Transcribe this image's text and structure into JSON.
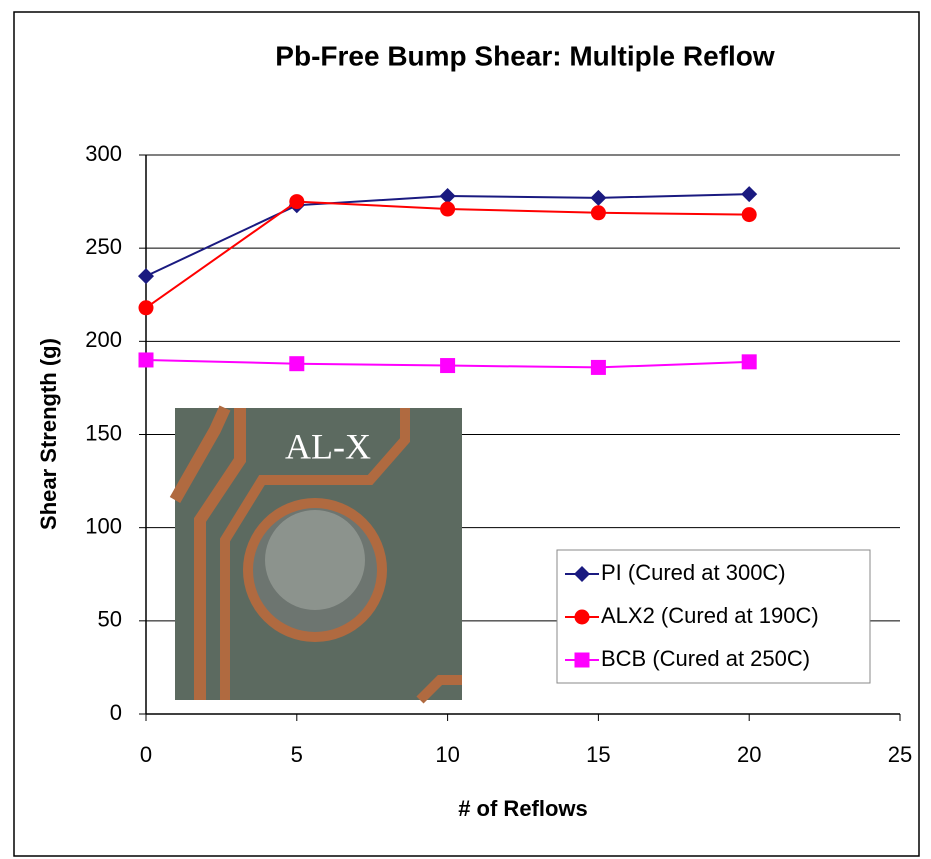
{
  "chart_data": {
    "type": "line",
    "title": "Pb-Free Bump Shear: Multiple Reflow",
    "x_label": "# of Reflows",
    "y_label": "Shear Strength (g)",
    "xlim": [
      0,
      25
    ],
    "xticks": [
      0,
      5,
      10,
      15,
      20,
      25
    ],
    "ylim": [
      0,
      300
    ],
    "yticks": [
      0,
      50,
      100,
      150,
      200,
      250,
      300
    ],
    "grid": true,
    "legend": "bottom-right",
    "inset_label": "AL-X",
    "x": [
      0,
      5,
      10,
      15,
      20
    ],
    "series": [
      {
        "name": "PI (Cured at 300C)",
        "color": "#1a1a80",
        "marker": "diamond",
        "values": [
          235,
          273,
          278,
          277,
          279
        ]
      },
      {
        "name": "ALX2 (Cured at 190C)",
        "color": "#ff0000",
        "marker": "circle",
        "values": [
          218,
          275,
          271,
          269,
          268
        ]
      },
      {
        "name": "BCB (Cured at 250C)",
        "color": "#ff00ff",
        "marker": "square",
        "values": [
          190,
          188,
          187,
          186,
          189
        ]
      }
    ]
  }
}
